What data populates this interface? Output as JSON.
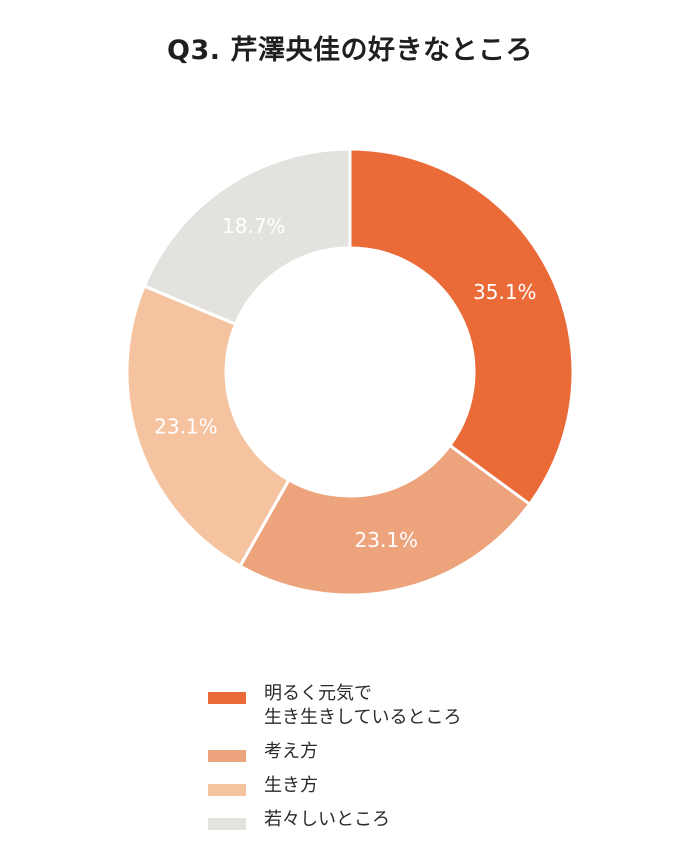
{
  "chart_data": {
    "type": "pie",
    "title": "Q3. 芹澤央佳の好きなところ",
    "categories": [
      "明るく元気で\n生き生きしているところ",
      "考え方",
      "生き方",
      "若々しいところ"
    ],
    "values": [
      35.1,
      23.1,
      23.1,
      18.7
    ],
    "data_labels": [
      "35.1%",
      "23.1%",
      "23.1%",
      "18.7%"
    ],
    "colors": [
      "#ea6a38",
      "#eda37c",
      "#f5c39f",
      "#e4e2de"
    ],
    "donut": true,
    "legend_position": "bottom"
  }
}
